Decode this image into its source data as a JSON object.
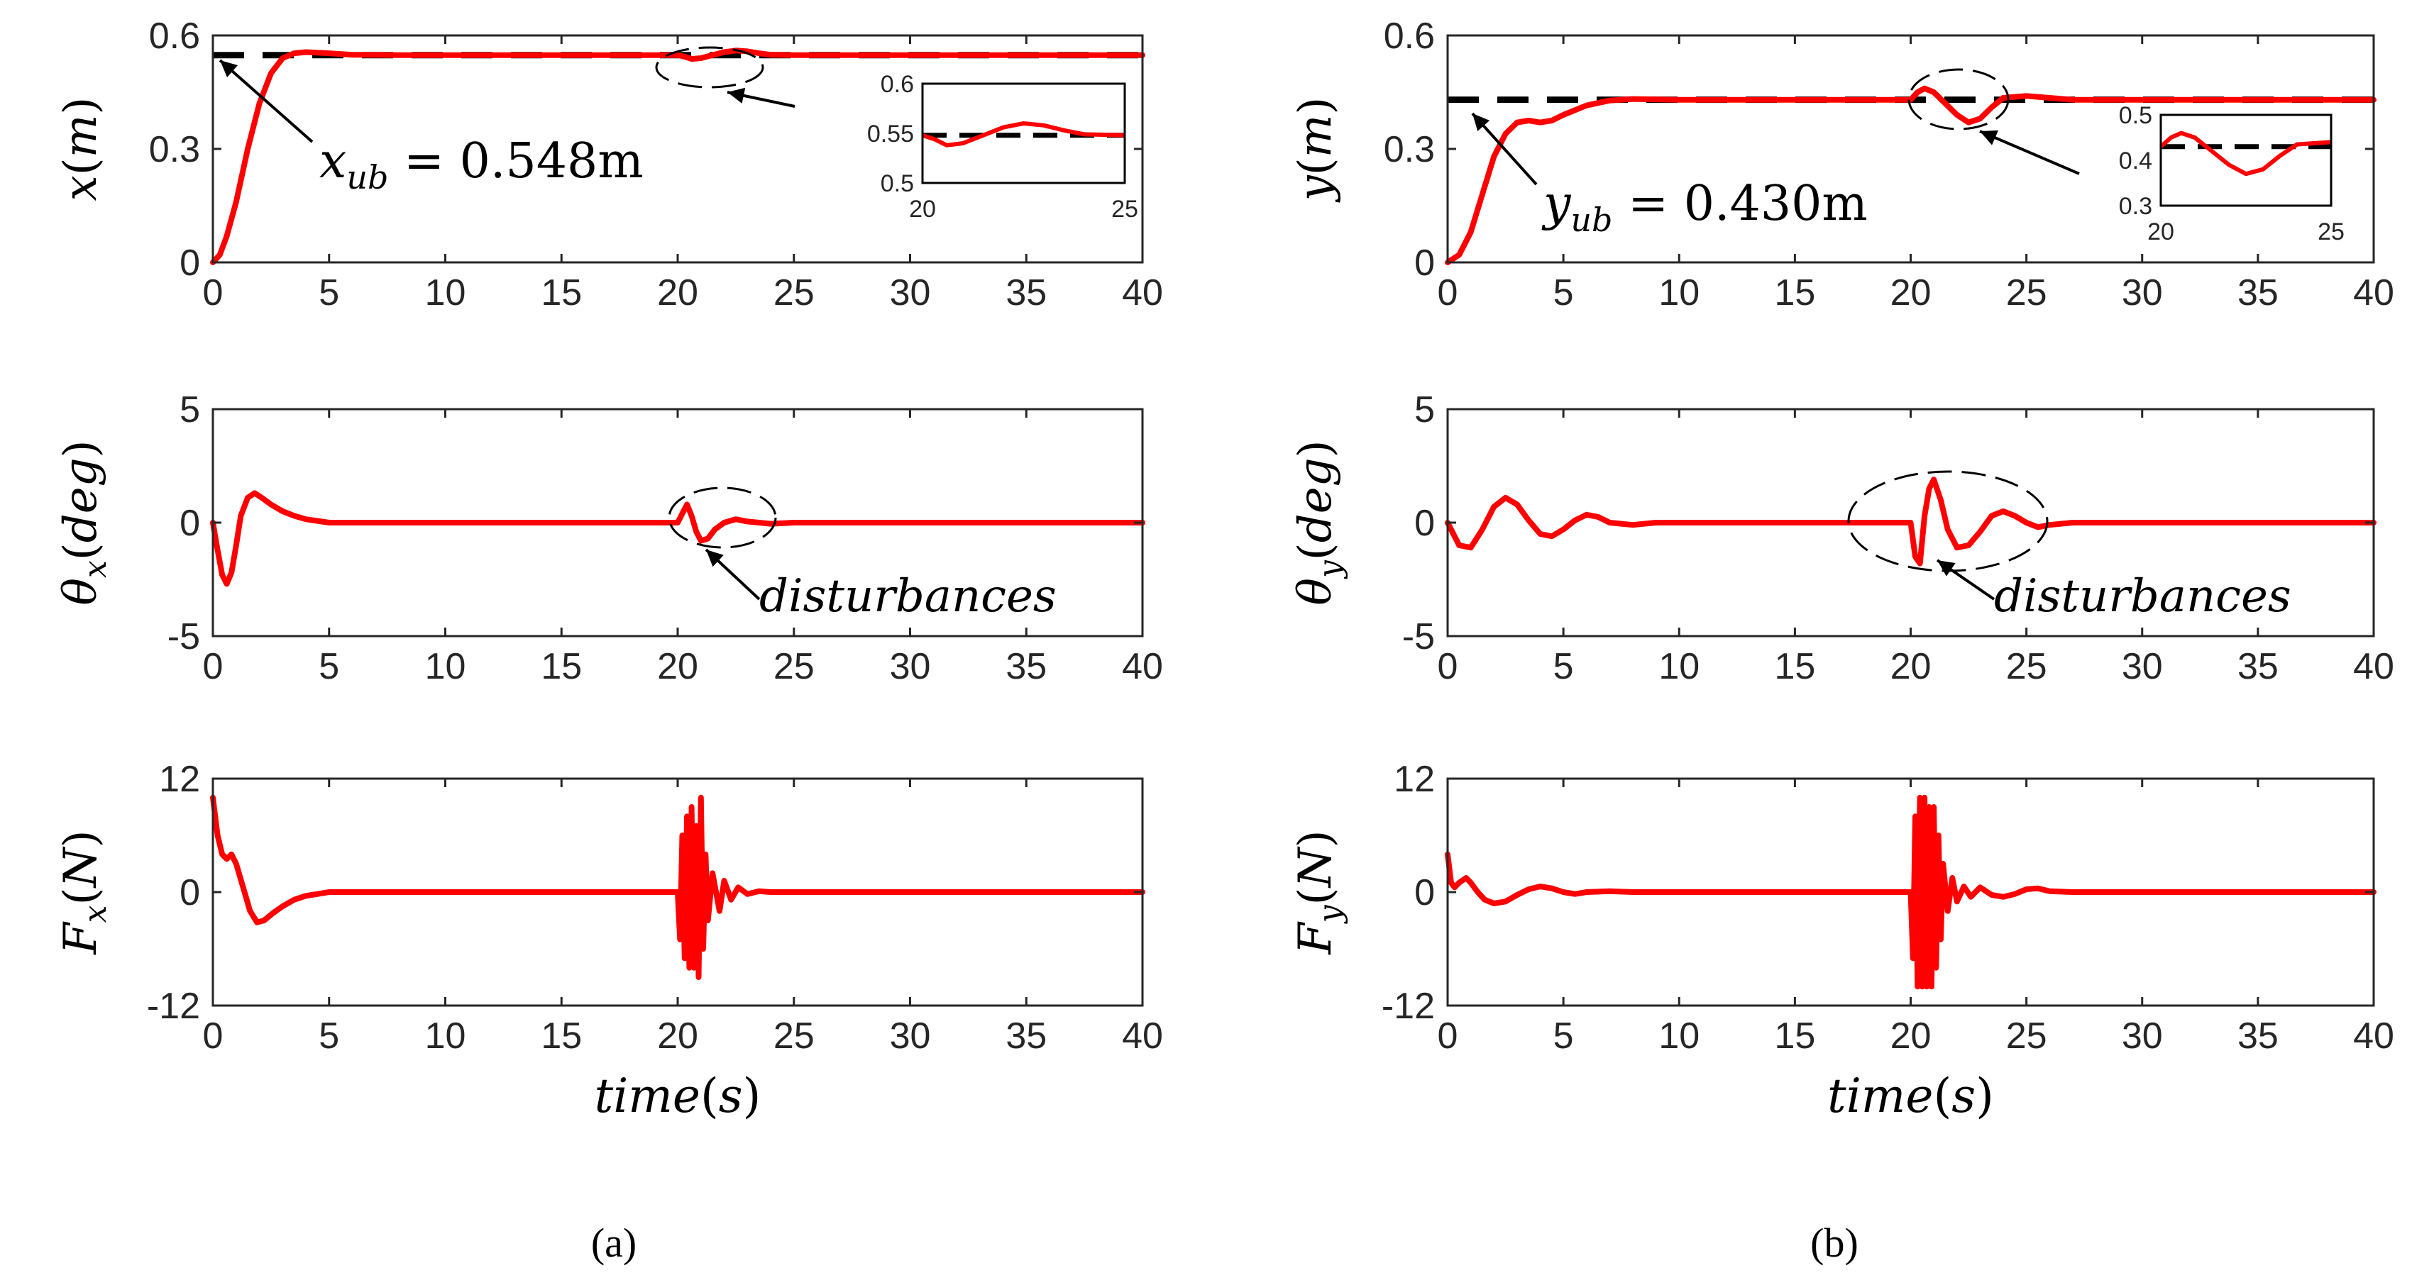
{
  "colors": {
    "response": "#ff0000",
    "bound": "#000000",
    "axis": "#262626"
  },
  "chart_data": [
    {
      "type": "line",
      "panel": "a",
      "name": "x-position",
      "ylabel_var": "x",
      "ylabel_paren": "(m)",
      "xlim": [
        0,
        40
      ],
      "ylim": [
        0,
        0.6
      ],
      "xticks": [
        "0",
        "5",
        "10",
        "15",
        "20",
        "25",
        "30",
        "35",
        "40"
      ],
      "yticks": [
        "0",
        "0.3",
        "0.6"
      ],
      "ytick_values": [
        0,
        0.3,
        0.6
      ],
      "bound_value": 0.548,
      "bound_label": {
        "var": "x",
        "sub": "ub",
        "rest": " = 0.548m"
      },
      "series": [
        {
          "name": "x",
          "x": [
            0,
            0.3,
            0.6,
            1,
            1.5,
            2,
            2.5,
            3,
            3.5,
            4,
            5,
            6,
            8,
            10,
            15,
            20,
            20.3,
            20.6,
            21,
            21.5,
            22,
            22.5,
            23,
            23.5,
            24,
            25,
            30,
            40
          ],
          "values": [
            0,
            0.02,
            0.07,
            0.16,
            0.3,
            0.42,
            0.5,
            0.54,
            0.553,
            0.556,
            0.553,
            0.549,
            0.548,
            0.548,
            0.548,
            0.548,
            0.544,
            0.538,
            0.54,
            0.548,
            0.556,
            0.56,
            0.558,
            0.553,
            0.549,
            0.548,
            0.548,
            0.548
          ]
        }
      ],
      "inset": {
        "xlim": [
          20,
          25
        ],
        "ylim": [
          0.5,
          0.6
        ],
        "xticks": [
          "20",
          "25"
        ],
        "yticks": [
          "0.5",
          "0.55",
          "0.6"
        ],
        "ytick_values": [
          0.5,
          0.55,
          0.6
        ]
      }
    },
    {
      "type": "line",
      "panel": "a",
      "name": "theta-x",
      "ylabel_var": "θ",
      "ylabel_sub": "x",
      "ylabel_paren": "(deg)",
      "xlim": [
        0,
        40
      ],
      "ylim": [
        -5,
        5
      ],
      "xticks": [
        "0",
        "5",
        "10",
        "15",
        "20",
        "25",
        "30",
        "35",
        "40"
      ],
      "yticks": [
        "-5",
        "0",
        "5"
      ],
      "ytick_values": [
        -5,
        0,
        5
      ],
      "annotation": "disturbances",
      "series": [
        {
          "name": "theta_x",
          "x": [
            0,
            0.2,
            0.4,
            0.6,
            0.8,
            1,
            1.2,
            1.5,
            1.8,
            2.1,
            2.5,
            3,
            3.5,
            4,
            5,
            6,
            10,
            20,
            20.2,
            20.4,
            20.6,
            20.8,
            21,
            21.3,
            21.6,
            22,
            22.5,
            23,
            24,
            25,
            40
          ],
          "values": [
            0,
            -1.2,
            -2.3,
            -2.7,
            -2.2,
            -1,
            0.3,
            1.1,
            1.3,
            1.1,
            0.8,
            0.5,
            0.3,
            0.15,
            0,
            0,
            0,
            0,
            0.4,
            0.8,
            0.3,
            -0.4,
            -0.8,
            -0.7,
            -0.3,
            0,
            0.15,
            0.05,
            -0.05,
            0,
            0
          ]
        }
      ]
    },
    {
      "type": "line",
      "panel": "a",
      "name": "force-x",
      "ylabel_var": "F",
      "ylabel_sub": "x",
      "ylabel_paren": "(N)",
      "xlabel_var": "time",
      "xlabel_paren": "(s)",
      "xlim": [
        0,
        40
      ],
      "ylim": [
        -12,
        12
      ],
      "xticks": [
        "0",
        "5",
        "10",
        "15",
        "20",
        "25",
        "30",
        "35",
        "40"
      ],
      "yticks": [
        "-12",
        "0",
        "12"
      ],
      "ytick_values": [
        -12,
        0,
        12
      ],
      "series": [
        {
          "name": "F_x",
          "x": [
            0,
            0.2,
            0.4,
            0.6,
            0.8,
            1,
            1.3,
            1.6,
            1.9,
            2.2,
            2.6,
            3,
            3.5,
            4,
            5,
            6,
            10,
            20,
            20.1,
            20.2,
            20.3,
            20.4,
            20.5,
            20.6,
            20.7,
            20.8,
            20.9,
            21,
            21.1,
            21.2,
            21.3,
            21.5,
            21.8,
            22,
            22.3,
            22.6,
            23,
            23.5,
            24,
            40
          ],
          "values": [
            10,
            6,
            4,
            3.5,
            4,
            3,
            0.5,
            -2,
            -3.2,
            -3,
            -2.2,
            -1.5,
            -0.8,
            -0.4,
            0,
            0,
            0,
            0,
            -5,
            6,
            -7,
            8,
            -8,
            9,
            -8,
            7,
            -9,
            10,
            -6,
            4,
            -3,
            2,
            -2,
            1.2,
            -0.8,
            0.5,
            -0.2,
            0.1,
            0,
            0
          ]
        }
      ]
    },
    {
      "type": "line",
      "panel": "b",
      "name": "y-position",
      "ylabel_var": "y",
      "ylabel_paren": "(m)",
      "xlim": [
        0,
        40
      ],
      "ylim": [
        0,
        0.6
      ],
      "xticks": [
        "0",
        "5",
        "10",
        "15",
        "20",
        "25",
        "30",
        "35",
        "40"
      ],
      "yticks": [
        "0",
        "0.3",
        "0.6"
      ],
      "ytick_values": [
        0,
        0.3,
        0.6
      ],
      "bound_value": 0.43,
      "bound_label": {
        "var": "y",
        "sub": "ub",
        "rest": " = 0.430m"
      },
      "series": [
        {
          "name": "y",
          "x": [
            0,
            0.5,
            1,
            1.5,
            2,
            2.5,
            3,
            3.5,
            4,
            4.5,
            5,
            6,
            7,
            8,
            10,
            15,
            20,
            20.3,
            20.6,
            21,
            21.5,
            22,
            22.5,
            23,
            23.5,
            24,
            25,
            26,
            27,
            28,
            40
          ],
          "values": [
            0,
            0.02,
            0.08,
            0.18,
            0.28,
            0.34,
            0.37,
            0.375,
            0.37,
            0.375,
            0.39,
            0.415,
            0.428,
            0.432,
            0.43,
            0.43,
            0.43,
            0.45,
            0.46,
            0.45,
            0.42,
            0.39,
            0.37,
            0.38,
            0.41,
            0.435,
            0.44,
            0.435,
            0.43,
            0.43,
            0.43
          ]
        }
      ],
      "inset": {
        "xlim": [
          20,
          25
        ],
        "ylim": [
          0.3,
          0.5
        ],
        "xticks": [
          "20",
          "25"
        ],
        "yticks": [
          "0.3",
          "0.4",
          "0.5"
        ],
        "ytick_values": [
          0.3,
          0.4,
          0.5
        ]
      }
    },
    {
      "type": "line",
      "panel": "b",
      "name": "theta-y",
      "ylabel_var": "θ",
      "ylabel_sub": "y",
      "ylabel_paren": "(deg)",
      "xlim": [
        0,
        40
      ],
      "ylim": [
        -5,
        5
      ],
      "xticks": [
        "0",
        "5",
        "10",
        "15",
        "20",
        "25",
        "30",
        "35",
        "40"
      ],
      "yticks": [
        "-5",
        "0",
        "5"
      ],
      "ytick_values": [
        -5,
        0,
        5
      ],
      "annotation": "disturbances",
      "series": [
        {
          "name": "theta_y",
          "x": [
            0,
            0.5,
            1,
            1.5,
            2,
            2.5,
            3,
            3.5,
            4,
            4.5,
            5,
            5.5,
            6,
            6.5,
            7,
            8,
            9,
            10,
            12,
            15,
            20,
            20.2,
            20.4,
            20.6,
            20.8,
            21,
            21.3,
            21.6,
            22,
            22.5,
            23,
            23.5,
            24,
            24.5,
            25,
            25.5,
            26,
            27,
            28,
            30,
            40
          ],
          "values": [
            0,
            -1,
            -1.1,
            -0.3,
            0.7,
            1.1,
            0.8,
            0.1,
            -0.5,
            -0.6,
            -0.3,
            0.1,
            0.35,
            0.25,
            0,
            -0.1,
            0,
            0,
            0,
            0,
            0,
            -1.5,
            -1.8,
            0.3,
            1.5,
            1.9,
            1,
            -0.3,
            -1.1,
            -1,
            -0.4,
            0.3,
            0.5,
            0.3,
            0,
            -0.2,
            -0.1,
            0,
            0,
            0,
            0
          ]
        }
      ]
    },
    {
      "type": "line",
      "panel": "b",
      "name": "force-y",
      "ylabel_var": "F",
      "ylabel_sub": "y",
      "ylabel_paren": "(N)",
      "xlabel_var": "time",
      "xlabel_paren": "(s)",
      "xlim": [
        0,
        40
      ],
      "ylim": [
        -12,
        12
      ],
      "xticks": [
        "0",
        "5",
        "10",
        "15",
        "20",
        "25",
        "30",
        "35",
        "40"
      ],
      "yticks": [
        "-12",
        "0",
        "12"
      ],
      "ytick_values": [
        -12,
        0,
        12
      ],
      "series": [
        {
          "name": "F_y",
          "x": [
            0,
            0.15,
            0.3,
            0.5,
            0.8,
            1,
            1.3,
            1.6,
            2,
            2.5,
            3,
            3.5,
            4,
            4.5,
            5,
            5.5,
            6,
            7,
            8,
            10,
            20,
            20.1,
            20.2,
            20.3,
            20.4,
            20.5,
            20.6,
            20.7,
            20.8,
            20.9,
            21,
            21.1,
            21.2,
            21.3,
            21.4,
            21.6,
            21.8,
            22,
            22.3,
            22.6,
            23,
            23.5,
            24,
            24.5,
            25,
            25.5,
            26,
            27,
            28,
            40
          ],
          "values": [
            4,
            1,
            0.5,
            1,
            1.5,
            1,
            0,
            -0.8,
            -1.2,
            -1,
            -0.3,
            0.3,
            0.6,
            0.4,
            0,
            -0.2,
            0,
            0.1,
            0,
            0,
            0,
            -7,
            8,
            -10,
            10,
            -10,
            10,
            -10,
            9,
            -10,
            9,
            -8,
            6,
            -5,
            3,
            -2,
            1.5,
            -1,
            0.6,
            -0.5,
            0.5,
            -0.3,
            -0.5,
            -0.2,
            0.3,
            0.4,
            0.1,
            0,
            0,
            0
          ]
        }
      ]
    }
  ],
  "panel_labels": [
    "(a)",
    "(b)"
  ]
}
